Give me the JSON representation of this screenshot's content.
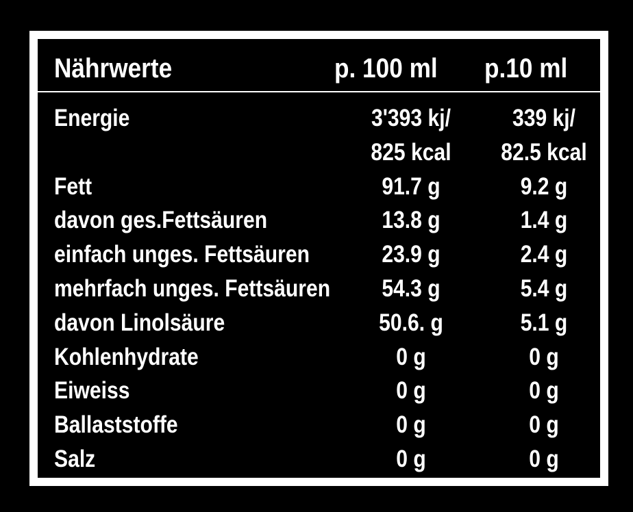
{
  "header": {
    "title": "Nährwerte",
    "col1": "p. 100 ml",
    "col2": "p.10 ml"
  },
  "rows": [
    {
      "label": "Energie",
      "per100": "3'393 kj/",
      "per10": "339 kj/"
    },
    {
      "label": "",
      "per100": "825 kcal",
      "per10": "82.5 kcal"
    },
    {
      "label": "Fett",
      "per100": "91.7 g",
      "per10": "9.2 g"
    },
    {
      "label": "davon ges.Fettsäuren",
      "per100": "13.8 g",
      "per10": "1.4 g"
    },
    {
      "label": "einfach unges. Fettsäuren",
      "per100": "23.9 g",
      "per10": "2.4 g"
    },
    {
      "label": "mehrfach unges. Fettsäuren",
      "per100": "54.3 g",
      "per10": "5.4 g"
    },
    {
      "label": "davon Linolsäure",
      "per100": "50.6. g",
      "per10": "5.1 g"
    },
    {
      "label": "Kohlenhydrate",
      "per100": "0 g",
      "per10": "0 g"
    },
    {
      "label": "Eiweiss",
      "per100": "0 g",
      "per10": "0 g"
    },
    {
      "label": "Ballaststoffe",
      "per100": "0 g",
      "per10": "0 g"
    },
    {
      "label": "Salz",
      "per100": "0 g",
      "per10": "0 g"
    }
  ]
}
